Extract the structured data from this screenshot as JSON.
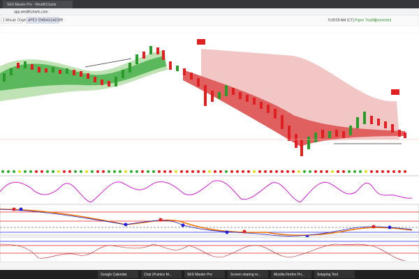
{
  "browser": {
    "tab_title": "SES Master Pro - WealthCharts",
    "url": "app.wealthcharts.com"
  },
  "toolbar": {
    "layout": "1 Minute Chart",
    "button": "APEX EMBASSADOR",
    "time": "9:39:59 AM (CT)",
    "mode": "Paper Trading",
    "status": "Connected"
  },
  "taskbar": {
    "items": [
      "Google Calendar",
      "Chat (Pumice M...",
      "SES Master Pro",
      "Screen sharing m...",
      "Mozilla Firefox Pri...",
      "Snipping Tool"
    ]
  }
}
